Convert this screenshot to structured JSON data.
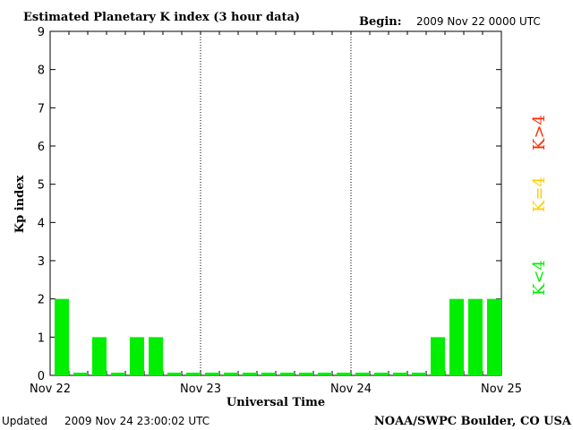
{
  "header": {
    "title": "Estimated Planetary K index (3 hour data)",
    "begin_label": "Begin:",
    "begin_value": "2009 Nov 22 0000 UTC"
  },
  "footer": {
    "updated_label": "Updated",
    "updated_value": "2009 Nov 24 23:00:02 UTC",
    "credit": "NOAA/SWPC Boulder, CO USA"
  },
  "legend": {
    "low": {
      "text": "K<4",
      "color": "#00ee00"
    },
    "mid": {
      "text": "K=4",
      "color": "#ffcc00"
    },
    "high": {
      "text": "K>4",
      "color": "#ff2a00"
    }
  },
  "chart_data": {
    "type": "bar",
    "title": "Estimated Planetary K index (3 hour data)",
    "xlabel": "Universal Time",
    "ylabel": "Kp index",
    "ylim": [
      0,
      9
    ],
    "yticks": [
      0,
      1,
      2,
      3,
      4,
      5,
      6,
      7,
      8,
      9
    ],
    "xticks": [
      "Nov 22",
      "Nov 23",
      "Nov 24",
      "Nov 25"
    ],
    "interval_hours": 3,
    "values": [
      2,
      0,
      1,
      0,
      1,
      1,
      0,
      0,
      0,
      0,
      0,
      0,
      0,
      0,
      0,
      0,
      0,
      0,
      0,
      0,
      1,
      2,
      2,
      2
    ],
    "bar_color": "#00ee00",
    "grid": "vertical dotted lines at day boundaries"
  }
}
